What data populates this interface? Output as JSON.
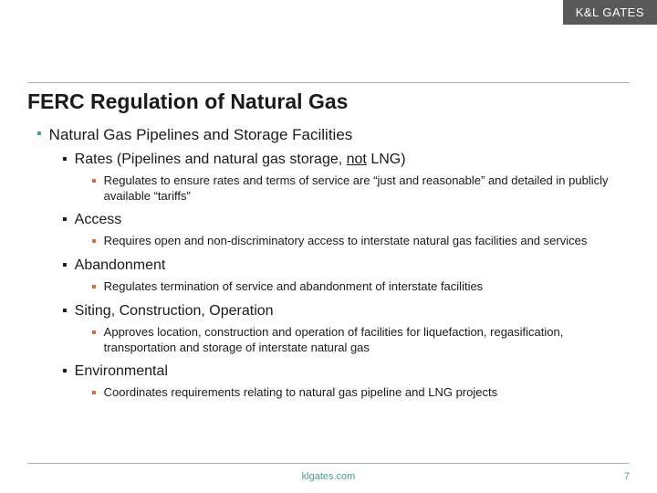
{
  "logo": "K&L GATES",
  "title": "FERC Regulation of Natural Gas",
  "colors": {
    "logo_bg": "#595959",
    "title_color": "#1a1a1a",
    "teal": "#4a9b9b",
    "orange": "#c96f3b",
    "divider": "#b0b0b0"
  },
  "l1": {
    "label": "Natural Gas Pipelines and Storage Facilities"
  },
  "sections": [
    {
      "heading_pre": "Rates (Pipelines and natural gas storage, ",
      "heading_u": "not",
      "heading_post": " LNG)",
      "sub": "Regulates to ensure rates and terms of service are “just and reasonable” and detailed in publicly available “tariffs”"
    },
    {
      "heading": "Access",
      "sub": "Requires open and non-discriminatory access to interstate natural gas facilities and services"
    },
    {
      "heading": "Abandonment",
      "sub": "Regulates termination of service and abandonment of interstate facilities"
    },
    {
      "heading": "Siting, Construction, Operation",
      "sub": "Approves location, construction and operation of facilities for liquefaction, regasification, transportation and storage of interstate natural gas"
    },
    {
      "heading": "Environmental",
      "sub": "Coordinates requirements relating to natural gas pipeline and LNG projects"
    }
  ],
  "footer": {
    "url": "klgates.com",
    "page": "7"
  }
}
